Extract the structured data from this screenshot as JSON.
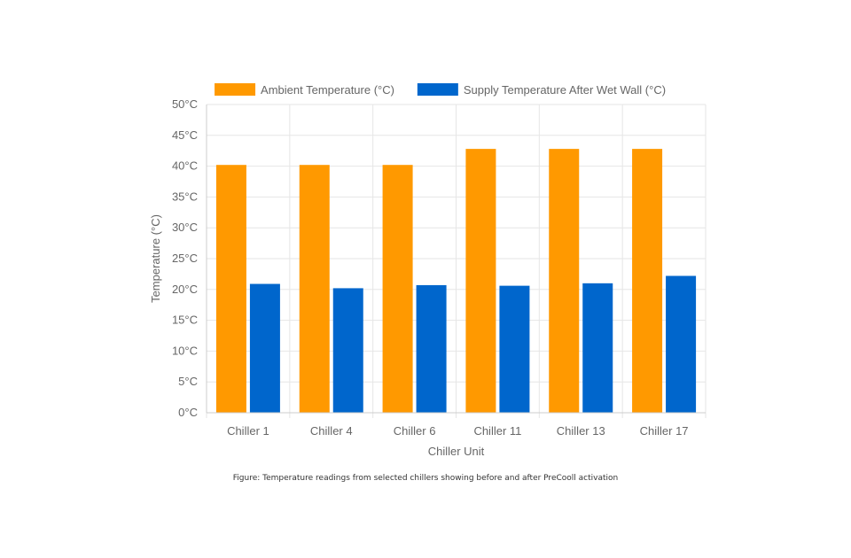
{
  "colors": {
    "ambient": "#ff9900",
    "supply": "#0066cc",
    "grid": "#e6e6e6",
    "axis": "#cccccc",
    "text": "#666666"
  },
  "caption": "Figure: Temperature readings from selected chillers showing before and after PreCooll activation",
  "chart_data": {
    "type": "bar",
    "title": "",
    "xlabel": "Chiller Unit",
    "ylabel": "Temperature (°C)",
    "ylim": [
      0,
      50
    ],
    "y_ticks": [
      0,
      5,
      10,
      15,
      20,
      25,
      30,
      35,
      40,
      45,
      50
    ],
    "y_tick_suffix": "°C",
    "grid": true,
    "legend_position": "top",
    "categories": [
      "Chiller 1",
      "Chiller 4",
      "Chiller 6",
      "Chiller 11",
      "Chiller 13",
      "Chiller 17"
    ],
    "series": [
      {
        "name": "Ambient Temperature (°C)",
        "color": "#ff9900",
        "values": [
          40.2,
          40.2,
          40.2,
          42.8,
          42.8,
          42.8
        ]
      },
      {
        "name": "Supply Temperature After Wet Wall (°C)",
        "color": "#0066cc",
        "values": [
          20.9,
          20.2,
          20.7,
          20.6,
          21.0,
          22.2
        ]
      }
    ]
  }
}
